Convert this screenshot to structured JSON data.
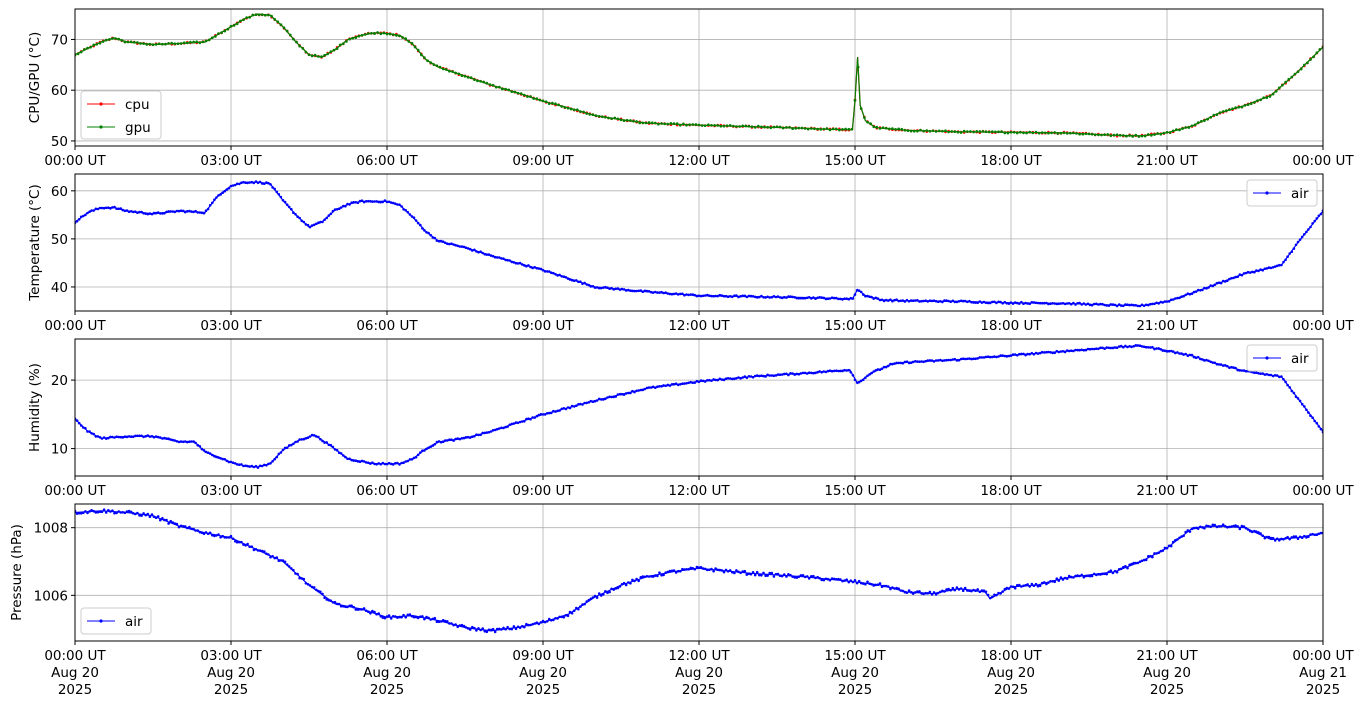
{
  "colors": {
    "cpu": "#ff0000",
    "gpu": "#008000",
    "air": "#0000ff",
    "grid": "#b0b0b0"
  },
  "x_tick_labels": [
    "00:00 UT",
    "03:00 UT",
    "06:00 UT",
    "09:00 UT",
    "12:00 UT",
    "15:00 UT",
    "18:00 UT",
    "21:00 UT",
    "00:00 UT"
  ],
  "x_tick_dates": [
    "Aug 20",
    "Aug 20",
    "Aug 20",
    "Aug 20",
    "Aug 20",
    "Aug 20",
    "Aug 20",
    "Aug 20",
    "Aug 21"
  ],
  "x_tick_years": [
    "2025",
    "2025",
    "2025",
    "2025",
    "2025",
    "2025",
    "2025",
    "2025",
    "2025"
  ],
  "chart_data": [
    {
      "type": "line",
      "ylabel": "CPU/GPU (°C)",
      "xlim": [
        "2025-08-20 00:00",
        "2025-08-21 00:00"
      ],
      "ylim": [
        49,
        76
      ],
      "yticks": [
        50,
        60,
        70
      ],
      "grid": true,
      "legend": "lower-left",
      "series": [
        {
          "name": "cpu",
          "color": "#ff0000",
          "points": [
            [
              0,
              67
            ],
            [
              0.3,
              68.5
            ],
            [
              0.5,
              69.5
            ],
            [
              0.75,
              70.3
            ],
            [
              1,
              69.5
            ],
            [
              1.5,
              69
            ],
            [
              2,
              69.2
            ],
            [
              2.5,
              69.5
            ],
            [
              2.75,
              71
            ],
            [
              3,
              72.5
            ],
            [
              3.25,
              74
            ],
            [
              3.5,
              75
            ],
            [
              3.75,
              74.8
            ],
            [
              4,
              72.5
            ],
            [
              4.25,
              69.5
            ],
            [
              4.5,
              67
            ],
            [
              4.75,
              66.5
            ],
            [
              5,
              68
            ],
            [
              5.25,
              70
            ],
            [
              5.5,
              70.8
            ],
            [
              5.75,
              71.3
            ],
            [
              6,
              71.2
            ],
            [
              6.25,
              70.8
            ],
            [
              6.5,
              69
            ],
            [
              6.75,
              66
            ],
            [
              7,
              64.5
            ],
            [
              7.5,
              62.8
            ],
            [
              8,
              61
            ],
            [
              8.5,
              59.5
            ],
            [
              9,
              57.8
            ],
            [
              9.5,
              56.5
            ],
            [
              10,
              55
            ],
            [
              10.5,
              54.2
            ],
            [
              11,
              53.5
            ],
            [
              12,
              53.1
            ],
            [
              13,
              52.8
            ],
            [
              14,
              52.5
            ],
            [
              14.5,
              52.3
            ],
            [
              14.95,
              52.2
            ],
            [
              15,
              58
            ],
            [
              15.05,
              66.5
            ],
            [
              15.1,
              57
            ],
            [
              15.2,
              54
            ],
            [
              15.4,
              52.6
            ],
            [
              16,
              52.1
            ],
            [
              17,
              51.8
            ],
            [
              18,
              51.7
            ],
            [
              19,
              51.6
            ],
            [
              20,
              51.1
            ],
            [
              20.5,
              51
            ],
            [
              21,
              51.6
            ],
            [
              21.5,
              53
            ],
            [
              22,
              55.5
            ],
            [
              22.5,
              57
            ],
            [
              23,
              59
            ],
            [
              23.5,
              63.5
            ],
            [
              24,
              68.5
            ]
          ]
        },
        {
          "name": "gpu",
          "color": "#008000",
          "points": [
            [
              0,
              67
            ],
            [
              0.3,
              68.5
            ],
            [
              0.5,
              69.5
            ],
            [
              0.75,
              70.3
            ],
            [
              1,
              69.5
            ],
            [
              1.5,
              69
            ],
            [
              2,
              69.2
            ],
            [
              2.5,
              69.5
            ],
            [
              2.75,
              71
            ],
            [
              3,
              72.5
            ],
            [
              3.25,
              74
            ],
            [
              3.5,
              75
            ],
            [
              3.75,
              74.8
            ],
            [
              4,
              72.5
            ],
            [
              4.25,
              69.5
            ],
            [
              4.5,
              67
            ],
            [
              4.75,
              66.5
            ],
            [
              5,
              68
            ],
            [
              5.25,
              70
            ],
            [
              5.5,
              70.8
            ],
            [
              5.75,
              71.3
            ],
            [
              6,
              71.2
            ],
            [
              6.25,
              70.8
            ],
            [
              6.5,
              69
            ],
            [
              6.75,
              66
            ],
            [
              7,
              64.5
            ],
            [
              7.5,
              62.8
            ],
            [
              8,
              61
            ],
            [
              8.5,
              59.5
            ],
            [
              9,
              57.8
            ],
            [
              9.5,
              56.5
            ],
            [
              10,
              55
            ],
            [
              10.5,
              54.2
            ],
            [
              11,
              53.5
            ],
            [
              12,
              53.1
            ],
            [
              13,
              52.8
            ],
            [
              14,
              52.5
            ],
            [
              14.5,
              52.3
            ],
            [
              14.95,
              52.2
            ],
            [
              15,
              58
            ],
            [
              15.05,
              66.5
            ],
            [
              15.1,
              57
            ],
            [
              15.2,
              54
            ],
            [
              15.4,
              52.6
            ],
            [
              16,
              52.1
            ],
            [
              17,
              51.8
            ],
            [
              18,
              51.7
            ],
            [
              19,
              51.6
            ],
            [
              20,
              51.1
            ],
            [
              20.5,
              51
            ],
            [
              21,
              51.6
            ],
            [
              21.5,
              53
            ],
            [
              22,
              55.5
            ],
            [
              22.5,
              57
            ],
            [
              23,
              59
            ],
            [
              23.5,
              63.5
            ],
            [
              24,
              68.5
            ]
          ]
        }
      ]
    },
    {
      "type": "line",
      "ylabel": "Temperature (°C)",
      "xlim": [
        "2025-08-20 00:00",
        "2025-08-21 00:00"
      ],
      "ylim": [
        35,
        63.5
      ],
      "yticks": [
        40,
        50,
        60
      ],
      "grid": true,
      "legend": "upper-right",
      "series": [
        {
          "name": "air",
          "color": "#0000ff",
          "points": [
            [
              0,
              53.5
            ],
            [
              0.25,
              55.5
            ],
            [
              0.5,
              56.5
            ],
            [
              0.75,
              56.5
            ],
            [
              1,
              55.8
            ],
            [
              1.5,
              55.2
            ],
            [
              2,
              55.8
            ],
            [
              2.5,
              55.5
            ],
            [
              2.75,
              59
            ],
            [
              3,
              61
            ],
            [
              3.25,
              61.8
            ],
            [
              3.5,
              61.8
            ],
            [
              3.75,
              61.5
            ],
            [
              4,
              58
            ],
            [
              4.25,
              55
            ],
            [
              4.5,
              52.5
            ],
            [
              4.75,
              53.5
            ],
            [
              5,
              56
            ],
            [
              5.25,
              57.2
            ],
            [
              5.5,
              57.8
            ],
            [
              6,
              57.8
            ],
            [
              6.25,
              57
            ],
            [
              6.5,
              54.5
            ],
            [
              6.75,
              51.5
            ],
            [
              7,
              49.5
            ],
            [
              7.5,
              48.2
            ],
            [
              8,
              46.5
            ],
            [
              9,
              43.5
            ],
            [
              10,
              40
            ],
            [
              11,
              39
            ],
            [
              12,
              38.2
            ],
            [
              13,
              38
            ],
            [
              14,
              37.8
            ],
            [
              14.95,
              37.5
            ],
            [
              15.05,
              39.5
            ],
            [
              15.2,
              38.2
            ],
            [
              15.5,
              37.3
            ],
            [
              16,
              37.1
            ],
            [
              17,
              37
            ],
            [
              18,
              36.7
            ],
            [
              19,
              36.6
            ],
            [
              20,
              36.2
            ],
            [
              20.5,
              36.1
            ],
            [
              21,
              37
            ],
            [
              21.5,
              38.8
            ],
            [
              22,
              40.8
            ],
            [
              22.5,
              42.8
            ],
            [
              23,
              44
            ],
            [
              23.2,
              44.5
            ],
            [
              23.5,
              49
            ],
            [
              24,
              55.8
            ]
          ]
        }
      ]
    },
    {
      "type": "line",
      "ylabel": "Humidity (%)",
      "xlim": [
        "2025-08-20 00:00",
        "2025-08-21 00:00"
      ],
      "ylim": [
        6,
        26
      ],
      "yticks": [
        10,
        20
      ],
      "grid": true,
      "legend": "upper-right",
      "series": [
        {
          "name": "air",
          "color": "#0000ff",
          "points": [
            [
              0,
              14.3
            ],
            [
              0.25,
              12.5
            ],
            [
              0.5,
              11.5
            ],
            [
              1,
              11.8
            ],
            [
              1.5,
              11.8
            ],
            [
              2,
              11
            ],
            [
              2.3,
              11
            ],
            [
              2.5,
              9.5
            ],
            [
              2.75,
              8.8
            ],
            [
              3,
              8
            ],
            [
              3.25,
              7.5
            ],
            [
              3.5,
              7.3
            ],
            [
              3.75,
              7.8
            ],
            [
              4,
              9.8
            ],
            [
              4.3,
              11.2
            ],
            [
              4.6,
              12
            ],
            [
              4.9,
              10.5
            ],
            [
              5.25,
              8.5
            ],
            [
              5.75,
              7.8
            ],
            [
              6.25,
              7.8
            ],
            [
              6.5,
              8.5
            ],
            [
              6.75,
              10
            ],
            [
              7,
              11
            ],
            [
              7.5,
              11.5
            ],
            [
              8,
              12.5
            ],
            [
              9,
              15
            ],
            [
              10,
              17
            ],
            [
              11,
              18.8
            ],
            [
              12,
              19.8
            ],
            [
              13,
              20.5
            ],
            [
              14,
              21
            ],
            [
              14.9,
              21.5
            ],
            [
              15.05,
              19.5
            ],
            [
              15.3,
              21
            ],
            [
              15.7,
              22.3
            ],
            [
              16,
              22.6
            ],
            [
              17,
              23
            ],
            [
              18,
              23.6
            ],
            [
              19,
              24.2
            ],
            [
              20,
              24.8
            ],
            [
              20.5,
              25
            ],
            [
              21,
              24.3
            ],
            [
              21.5,
              23.5
            ],
            [
              22,
              22.3
            ],
            [
              22.5,
              21.3
            ],
            [
              23,
              20.7
            ],
            [
              23.2,
              20.5
            ],
            [
              23.5,
              17.5
            ],
            [
              24,
              12.5
            ]
          ]
        }
      ]
    },
    {
      "type": "line",
      "ylabel": "Pressure (hPa)",
      "xlim": [
        "2025-08-20 00:00",
        "2025-08-21 00:00"
      ],
      "ylim": [
        1004.65,
        1008.7
      ],
      "yticks": [
        1006,
        1008
      ],
      "grid": true,
      "legend": "lower-left",
      "series": [
        {
          "name": "air",
          "color": "#0000ff",
          "points": [
            [
              0,
              1008.45
            ],
            [
              0.5,
              1008.5
            ],
            [
              1,
              1008.45
            ],
            [
              1.5,
              1008.35
            ],
            [
              2,
              1008.05
            ],
            [
              2.5,
              1007.85
            ],
            [
              3,
              1007.7
            ],
            [
              3.5,
              1007.35
            ],
            [
              4,
              1007
            ],
            [
              4.5,
              1006.3
            ],
            [
              5,
              1005.75
            ],
            [
              5.5,
              1005.6
            ],
            [
              6,
              1005.35
            ],
            [
              6.5,
              1005.4
            ],
            [
              7,
              1005.25
            ],
            [
              7.5,
              1005.05
            ],
            [
              8,
              1004.95
            ],
            [
              8.5,
              1005.05
            ],
            [
              9,
              1005.2
            ],
            [
              9.5,
              1005.45
            ],
            [
              10,
              1005.95
            ],
            [
              10.5,
              1006.3
            ],
            [
              11,
              1006.55
            ],
            [
              11.5,
              1006.7
            ],
            [
              12,
              1006.8
            ],
            [
              13,
              1006.65
            ],
            [
              14,
              1006.55
            ],
            [
              15,
              1006.4
            ],
            [
              15.5,
              1006.3
            ],
            [
              16,
              1006.1
            ],
            [
              16.5,
              1006.05
            ],
            [
              17,
              1006.2
            ],
            [
              17.5,
              1006.1
            ],
            [
              17.6,
              1005.9
            ],
            [
              18,
              1006.25
            ],
            [
              18.5,
              1006.3
            ],
            [
              19,
              1006.5
            ],
            [
              19.5,
              1006.6
            ],
            [
              20,
              1006.7
            ],
            [
              20.5,
              1007
            ],
            [
              21,
              1007.4
            ],
            [
              21.5,
              1008
            ],
            [
              22,
              1008.05
            ],
            [
              22.5,
              1008
            ],
            [
              23,
              1007.65
            ],
            [
              23.5,
              1007.7
            ],
            [
              24,
              1007.85
            ]
          ]
        }
      ]
    }
  ]
}
